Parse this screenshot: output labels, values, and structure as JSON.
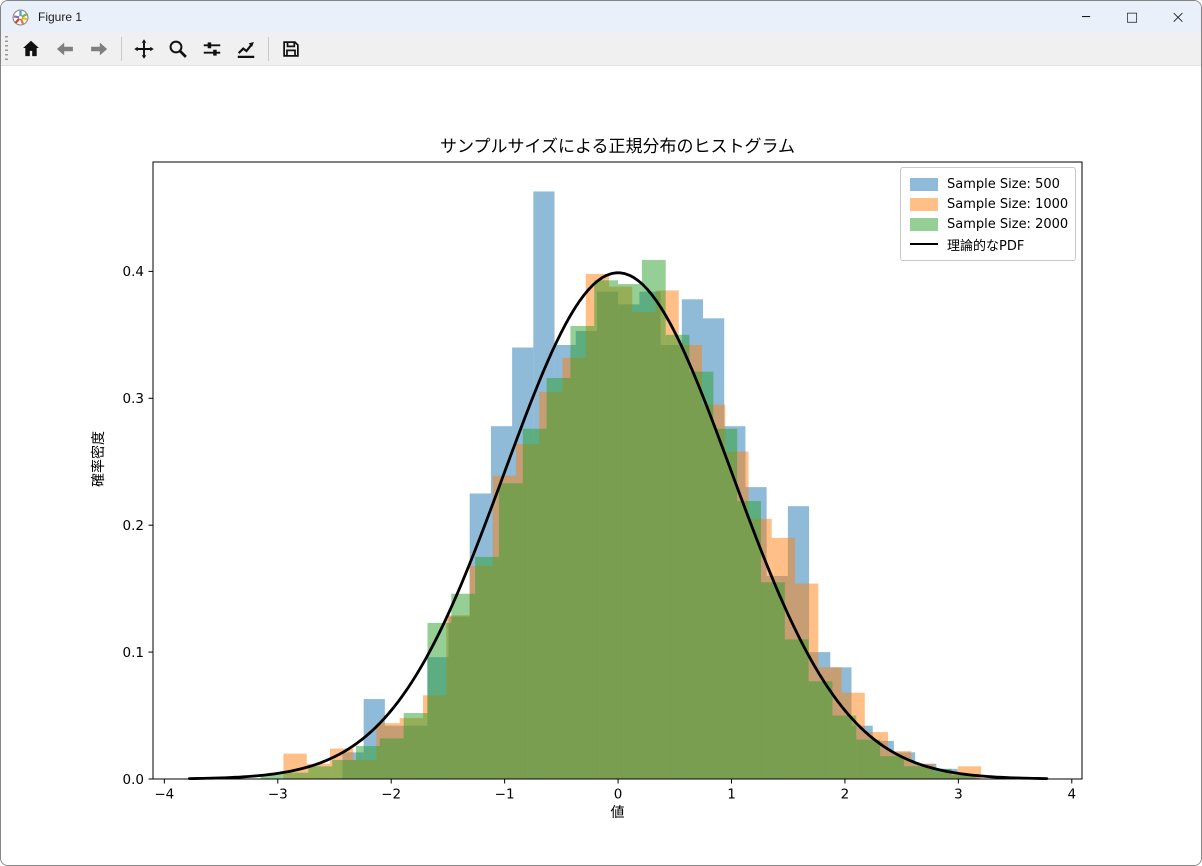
{
  "window": {
    "title": "Figure 1",
    "controls": {
      "minimize": "─",
      "maximize": "□",
      "close": "×"
    }
  },
  "toolbar": {
    "groups": [
      [
        "home",
        "back",
        "forward"
      ],
      [
        "pan",
        "zoom",
        "configure-subplots",
        "edit-axes"
      ],
      [
        "save"
      ]
    ],
    "disabled": [
      "back",
      "forward"
    ]
  },
  "chart_data": {
    "type": "bar",
    "subtype": "histogram-with-pdf-line",
    "title": "サンプルサイズによる正規分布のヒストグラム",
    "xlabel": "値",
    "ylabel": "確率密度",
    "xlim": [
      -4.1,
      4.09
    ],
    "ylim": [
      0,
      0.4862
    ],
    "xticks": [
      -4,
      -3,
      -2,
      -1,
      0,
      1,
      2,
      3,
      4
    ],
    "xtick_labels": [
      "−4",
      "−3",
      "−2",
      "−1",
      "0",
      "1",
      "2",
      "3",
      "4"
    ],
    "yticks": [
      0.0,
      0.1,
      0.2,
      0.3,
      0.4
    ],
    "ytick_labels": [
      "0.0",
      "0.1",
      "0.2",
      "0.3",
      "0.4"
    ],
    "grid": false,
    "legend_position": "upper right",
    "series": [
      {
        "name": "Sample Size: 500",
        "color": "#1f77b4",
        "alpha": 0.5,
        "bin_start": -2.43,
        "bin_width": 0.187,
        "heights": [
          0.021,
          0.063,
          0.042,
          0.042,
          0.096,
          0.128,
          0.225,
          0.278,
          0.34,
          0.463,
          0.342,
          0.353,
          0.384,
          0.374,
          0.384,
          0.342,
          0.378,
          0.363,
          0.278,
          0.23,
          0.16,
          0.215,
          0.1,
          0.088,
          0.042,
          0.03,
          0.021,
          0.012,
          0.008,
          0.004
        ]
      },
      {
        "name": "Sample Size: 1000",
        "color": "#ff7f0e",
        "alpha": 0.5,
        "bin_start": -2.95,
        "bin_width": 0.205,
        "heights": [
          0.02,
          0.012,
          0.024,
          0.015,
          0.044,
          0.048,
          0.066,
          0.129,
          0.168,
          0.239,
          0.264,
          0.305,
          0.332,
          0.398,
          0.388,
          0.368,
          0.385,
          0.342,
          0.295,
          0.258,
          0.205,
          0.19,
          0.154,
          0.088,
          0.068,
          0.037,
          0.022,
          0.012,
          0.005,
          0.01
        ]
      },
      {
        "name": "Sample Size: 2000",
        "color": "#2ca02c",
        "alpha": 0.5,
        "bin_start": -3.15,
        "bin_width": 0.21,
        "heights": [
          0.004,
          0.005,
          0.01,
          0.015,
          0.026,
          0.032,
          0.052,
          0.123,
          0.146,
          0.175,
          0.233,
          0.276,
          0.316,
          0.357,
          0.393,
          0.39,
          0.409,
          0.35,
          0.321,
          0.276,
          0.219,
          0.155,
          0.11,
          0.077,
          0.05,
          0.031,
          0.018,
          0.01,
          0.008,
          0.003
        ]
      }
    ],
    "pdf_line": {
      "name": "理論的なPDF",
      "color": "#000000",
      "mean": 0,
      "std": 1,
      "x_range": [
        -3.78,
        3.78
      ],
      "linewidth": 2.8
    }
  }
}
